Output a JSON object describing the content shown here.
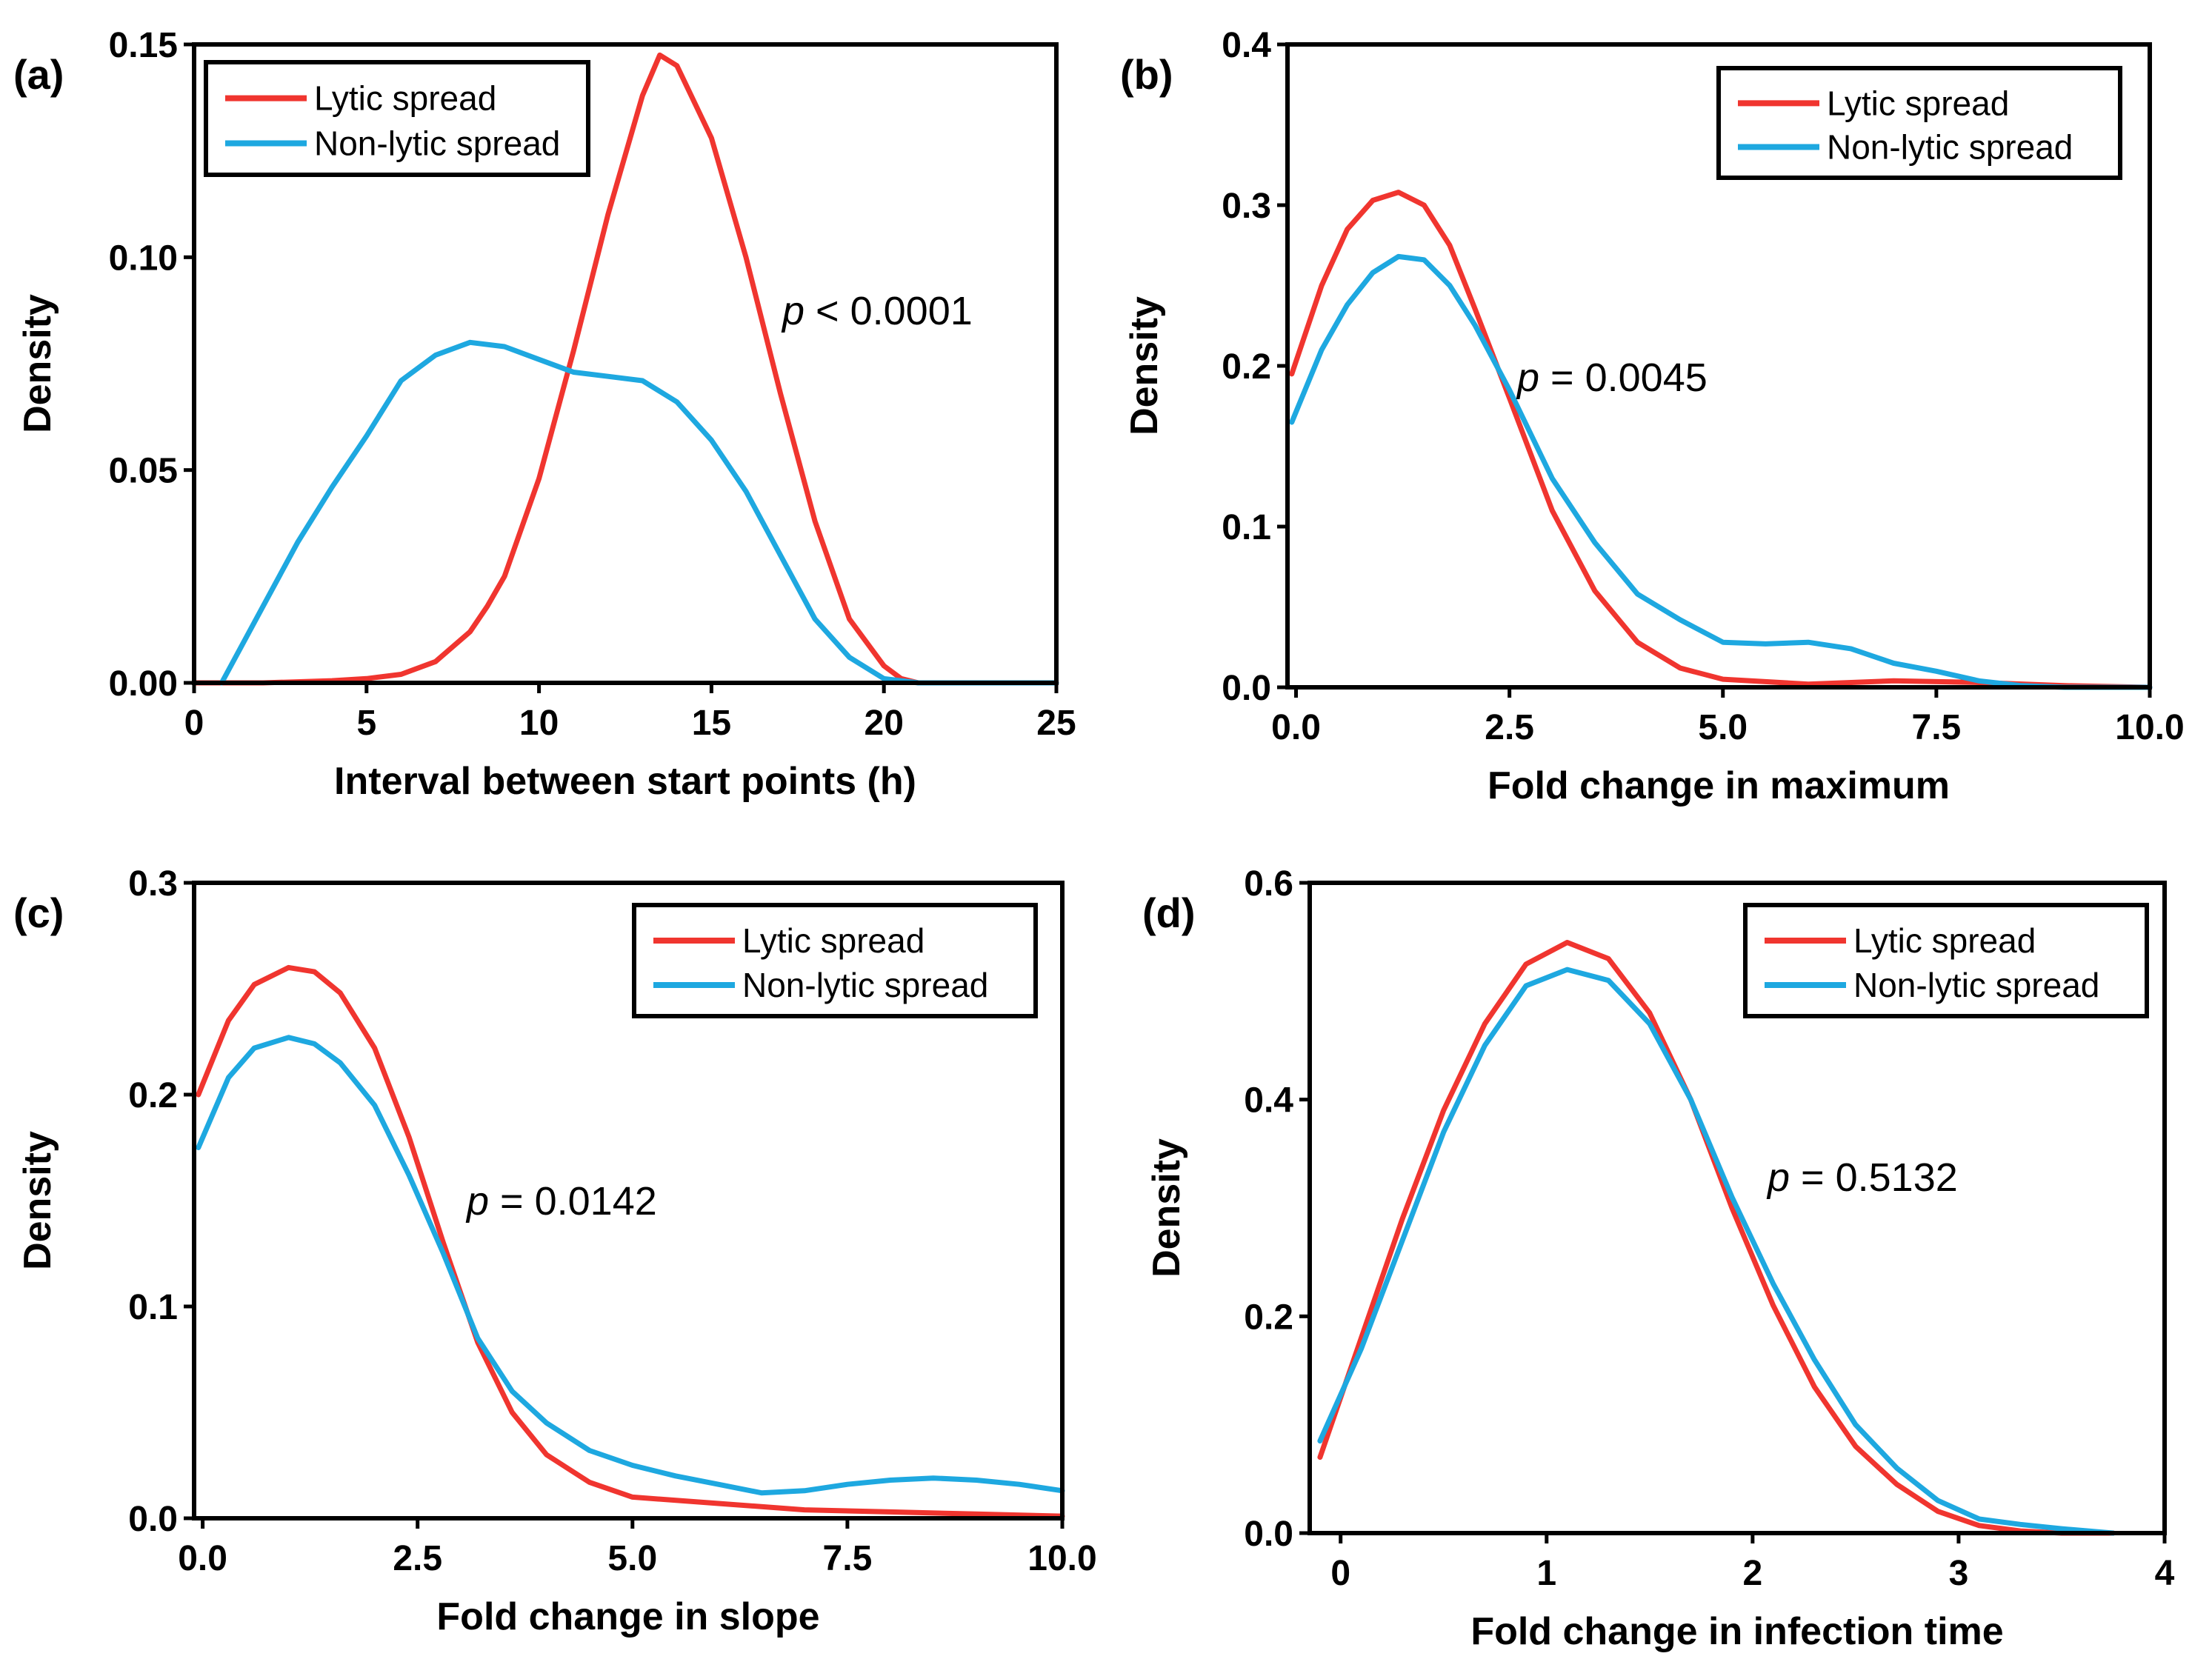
{
  "colors": {
    "lytic": "#f0352f",
    "nonlytic": "#1ea8e0",
    "axis": "#000000",
    "background": "#ffffff"
  },
  "legend": {
    "lytic": "Lytic spread",
    "nonlytic": "Non-lytic spread"
  },
  "chart_data": [
    {
      "type": "line",
      "panel_label": "(a)",
      "xlabel": "Interval between start points (h)",
      "ylabel": "Density",
      "xlim": [
        0,
        25
      ],
      "ylim": [
        0,
        0.15
      ],
      "xticks": [
        0,
        5,
        10,
        15,
        20,
        25
      ],
      "yticks": [
        0.0,
        0.05,
        0.1,
        0.15
      ],
      "xtick_labels": [
        "0",
        "5",
        "10",
        "15",
        "20",
        "25"
      ],
      "ytick_labels": [
        "0.00",
        "0.05",
        "0.10",
        "0.15"
      ],
      "annotation": {
        "p": "p",
        "rest": " < 0.0001"
      },
      "legend_position": "top-left",
      "series": [
        {
          "key": "lytic",
          "x": [
            0,
            2,
            4,
            5,
            6,
            7,
            8,
            8.5,
            9,
            10,
            11,
            12,
            13,
            13.5,
            14,
            15,
            16,
            17,
            18,
            19,
            20,
            20.5,
            21,
            25
          ],
          "y": [
            0,
            0,
            0.0005,
            0.001,
            0.002,
            0.005,
            0.012,
            0.018,
            0.025,
            0.048,
            0.078,
            0.11,
            0.138,
            0.1475,
            0.145,
            0.128,
            0.1,
            0.068,
            0.038,
            0.015,
            0.004,
            0.001,
            0,
            0
          ]
        },
        {
          "key": "nonlytic",
          "x": [
            0.8,
            2,
            3,
            4,
            5,
            6,
            7,
            8,
            9,
            10,
            11,
            12,
            13,
            14,
            15,
            16,
            17,
            18,
            19,
            20,
            21,
            25
          ],
          "y": [
            0,
            0.018,
            0.033,
            0.046,
            0.058,
            0.071,
            0.077,
            0.08,
            0.079,
            0.076,
            0.073,
            0.072,
            0.071,
            0.066,
            0.057,
            0.045,
            0.03,
            0.015,
            0.006,
            0.001,
            0,
            0
          ]
        }
      ]
    },
    {
      "type": "line",
      "panel_label": "(b)",
      "xlabel": "Fold change in maximum",
      "ylabel": "Density",
      "xlim": [
        -0.1,
        10
      ],
      "ylim": [
        0,
        0.4
      ],
      "xticks": [
        0,
        2.5,
        5,
        7.5,
        10
      ],
      "yticks": [
        0.0,
        0.1,
        0.2,
        0.3,
        0.4
      ],
      "xtick_labels": [
        "0.0",
        "2.5",
        "5.0",
        "7.5",
        "10.0"
      ],
      "ytick_labels": [
        "0.0",
        "0.1",
        "0.2",
        "0.3",
        "0.4"
      ],
      "annotation": {
        "p": "p",
        "rest": " = 0.0045"
      },
      "legend_position": "top-right",
      "series": [
        {
          "key": "lytic",
          "x": [
            -0.05,
            0.3,
            0.6,
            0.9,
            1.2,
            1.5,
            1.8,
            2.1,
            2.5,
            3.0,
            3.5,
            4.0,
            4.5,
            5.0,
            6.0,
            7.0,
            8.0,
            9.0,
            10.0
          ],
          "y": [
            0.195,
            0.25,
            0.285,
            0.303,
            0.308,
            0.3,
            0.275,
            0.235,
            0.18,
            0.11,
            0.06,
            0.028,
            0.012,
            0.005,
            0.002,
            0.004,
            0.003,
            0.001,
            0
          ]
        },
        {
          "key": "nonlytic",
          "x": [
            -0.05,
            0.3,
            0.6,
            0.9,
            1.2,
            1.5,
            1.8,
            2.1,
            2.5,
            3.0,
            3.5,
            4.0,
            4.5,
            5.0,
            5.5,
            6.0,
            6.5,
            7.0,
            7.5,
            8.0,
            8.5,
            9.0,
            10.0
          ],
          "y": [
            0.165,
            0.21,
            0.238,
            0.258,
            0.268,
            0.266,
            0.25,
            0.225,
            0.185,
            0.13,
            0.09,
            0.058,
            0.042,
            0.028,
            0.027,
            0.028,
            0.024,
            0.015,
            0.01,
            0.004,
            0.001,
            0,
            0
          ]
        }
      ]
    },
    {
      "type": "line",
      "panel_label": "(c)",
      "xlabel": "Fold change in slope",
      "ylabel": "Density",
      "xlim": [
        -0.1,
        10
      ],
      "ylim": [
        0,
        0.3
      ],
      "xticks": [
        0,
        2.5,
        5,
        7.5,
        10
      ],
      "yticks": [
        0.0,
        0.1,
        0.2,
        0.3
      ],
      "xtick_labels": [
        "0.0",
        "2.5",
        "5.0",
        "7.5",
        "10.0"
      ],
      "ytick_labels": [
        "0.0",
        "0.1",
        "0.2",
        "0.3"
      ],
      "annotation": {
        "p": "p",
        "rest": " = 0.0142"
      },
      "legend_position": "top-right",
      "series": [
        {
          "key": "lytic",
          "x": [
            -0.05,
            0.3,
            0.6,
            1.0,
            1.3,
            1.6,
            2.0,
            2.4,
            2.8,
            3.2,
            3.6,
            4.0,
            4.5,
            5.0,
            6.0,
            7.0,
            8.0,
            9.0,
            10.0
          ],
          "y": [
            0.2,
            0.235,
            0.252,
            0.26,
            0.258,
            0.248,
            0.222,
            0.18,
            0.13,
            0.083,
            0.05,
            0.03,
            0.017,
            0.01,
            0.007,
            0.004,
            0.003,
            0.002,
            0.001
          ]
        },
        {
          "key": "nonlytic",
          "x": [
            -0.05,
            0.3,
            0.6,
            1.0,
            1.3,
            1.6,
            2.0,
            2.4,
            2.8,
            3.2,
            3.6,
            4.0,
            4.5,
            5.0,
            5.5,
            6.0,
            6.5,
            7.0,
            7.5,
            8.0,
            8.5,
            9.0,
            9.5,
            10.0
          ],
          "y": [
            0.175,
            0.208,
            0.222,
            0.227,
            0.224,
            0.215,
            0.195,
            0.162,
            0.125,
            0.085,
            0.06,
            0.045,
            0.032,
            0.025,
            0.02,
            0.016,
            0.012,
            0.013,
            0.016,
            0.018,
            0.019,
            0.018,
            0.016,
            0.013
          ]
        }
      ]
    },
    {
      "type": "line",
      "panel_label": "(d)",
      "xlabel": "Fold change in infection time",
      "ylabel": "Density",
      "xlim": [
        -0.15,
        4
      ],
      "ylim": [
        0,
        0.6
      ],
      "xticks": [
        0,
        1,
        2,
        3,
        4
      ],
      "yticks": [
        0.0,
        0.2,
        0.4,
        0.6
      ],
      "xtick_labels": [
        "0",
        "1",
        "2",
        "3",
        "4"
      ],
      "ytick_labels": [
        "0.0",
        "0.2",
        "0.4",
        "0.6"
      ],
      "annotation": {
        "p": "p",
        "rest": " = 0.5132"
      },
      "legend_position": "top-right",
      "series": [
        {
          "key": "lytic",
          "x": [
            -0.1,
            0.1,
            0.3,
            0.5,
            0.7,
            0.9,
            1.1,
            1.3,
            1.5,
            1.7,
            1.9,
            2.1,
            2.3,
            2.5,
            2.7,
            2.9,
            3.1,
            3.3,
            3.5,
            3.75
          ],
          "y": [
            0.07,
            0.18,
            0.29,
            0.39,
            0.47,
            0.525,
            0.545,
            0.53,
            0.48,
            0.4,
            0.3,
            0.21,
            0.135,
            0.08,
            0.045,
            0.02,
            0.007,
            0.002,
            0,
            0
          ]
        },
        {
          "key": "nonlytic",
          "x": [
            -0.1,
            0.1,
            0.3,
            0.5,
            0.7,
            0.9,
            1.1,
            1.3,
            1.5,
            1.7,
            1.9,
            2.1,
            2.3,
            2.5,
            2.7,
            2.9,
            3.1,
            3.3,
            3.5,
            3.75
          ],
          "y": [
            0.085,
            0.17,
            0.27,
            0.37,
            0.45,
            0.505,
            0.52,
            0.51,
            0.47,
            0.4,
            0.31,
            0.23,
            0.16,
            0.1,
            0.06,
            0.03,
            0.013,
            0.008,
            0.004,
            0
          ]
        }
      ]
    }
  ]
}
